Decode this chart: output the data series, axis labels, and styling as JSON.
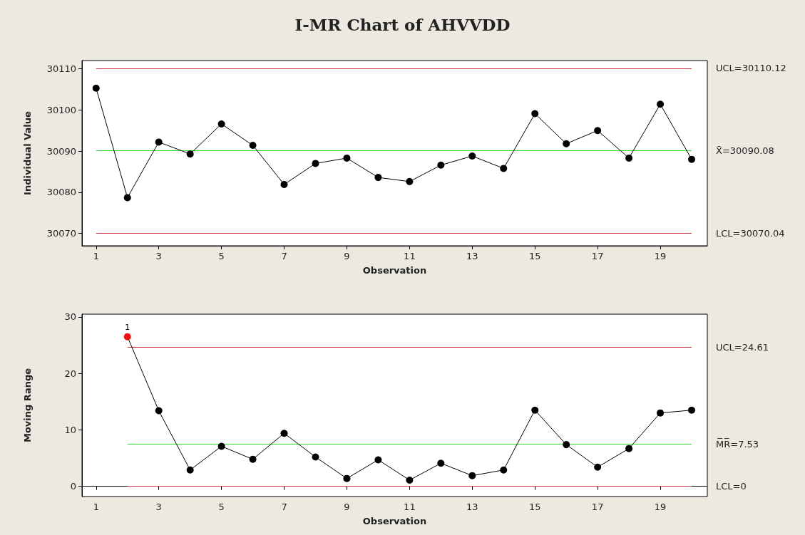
{
  "chart_data": [
    {
      "type": "line",
      "title": "I-MR Chart of AHVVDD",
      "xlabel": "Observation",
      "ylabel": "Individual Value",
      "x": [
        1,
        2,
        3,
        4,
        5,
        6,
        7,
        8,
        9,
        10,
        11,
        12,
        13,
        14,
        15,
        16,
        17,
        18,
        19,
        20
      ],
      "series": [
        {
          "color": "#000000",
          "values": [
            30105.3,
            30078.7,
            30092.2,
            30089.3,
            30096.6,
            30091.4,
            30081.9,
            30087.0,
            30088.3,
            30083.6,
            30082.6,
            30086.6,
            30088.8,
            30085.8,
            30099.1,
            30091.8,
            30095.0,
            30088.3,
            30101.4,
            30088.0
          ]
        }
      ],
      "marker": "circle",
      "line_style": "solid",
      "xlim": [
        0.55,
        20.5
      ],
      "xticks": [
        1,
        3,
        5,
        7,
        9,
        11,
        13,
        15,
        17,
        19
      ],
      "ylim": [
        30067,
        30112
      ],
      "yticks": [
        30070,
        30080,
        30090,
        30100,
        30110
      ],
      "grid": false,
      "ref_lines": [
        {
          "axis": "y",
          "value": 30110.12,
          "label": "UCL=30110.12",
          "color": "#cc3344"
        },
        {
          "axis": "y",
          "value": 30090.08,
          "label": "X̄=30090.08",
          "color": "#33dd33"
        },
        {
          "axis": "y",
          "value": 30070.04,
          "label": "LCL=30070.04",
          "color": "#cc3344"
        }
      ]
    },
    {
      "type": "line",
      "xlabel": "Observation",
      "ylabel": "Moving Range",
      "x": [
        2,
        3,
        4,
        5,
        6,
        7,
        8,
        9,
        10,
        11,
        12,
        13,
        14,
        15,
        16,
        17,
        18,
        19,
        20
      ],
      "series": [
        {
          "color": "#000000",
          "values": [
            26.5,
            13.4,
            2.9,
            7.1,
            4.8,
            9.4,
            5.2,
            1.4,
            4.7,
            1.1,
            4.1,
            1.9,
            2.9,
            13.5,
            7.4,
            3.4,
            6.7,
            13.0,
            13.5
          ],
          "colors": [
            "#ee1111",
            "#000000",
            "#000000",
            "#000000",
            "#000000",
            "#000000",
            "#000000",
            "#000000",
            "#000000",
            "#000000",
            "#000000",
            "#000000",
            "#000000",
            "#000000",
            "#000000",
            "#000000",
            "#000000",
            "#000000",
            "#000000"
          ]
        }
      ],
      "annotations": [
        {
          "text": "1",
          "x": 2,
          "y": 26.5
        }
      ],
      "marker": "circle",
      "line_style": "solid",
      "xlim": [
        0.55,
        20.5
      ],
      "xticks": [
        1,
        3,
        5,
        7,
        9,
        11,
        13,
        15,
        17,
        19
      ],
      "ylim": [
        -1.8,
        30.5
      ],
      "yticks": [
        0,
        10,
        20,
        30
      ],
      "grid": false,
      "ref_lines": [
        {
          "axis": "y",
          "value": 24.61,
          "label": "UCL=24.61",
          "color": "#cc3344"
        },
        {
          "axis": "y",
          "value": 7.53,
          "label": "M̅R̅=7.53",
          "color": "#33dd33"
        },
        {
          "axis": "y",
          "value": 0,
          "label": "LCL=0",
          "color": "#cc3344"
        }
      ]
    }
  ]
}
